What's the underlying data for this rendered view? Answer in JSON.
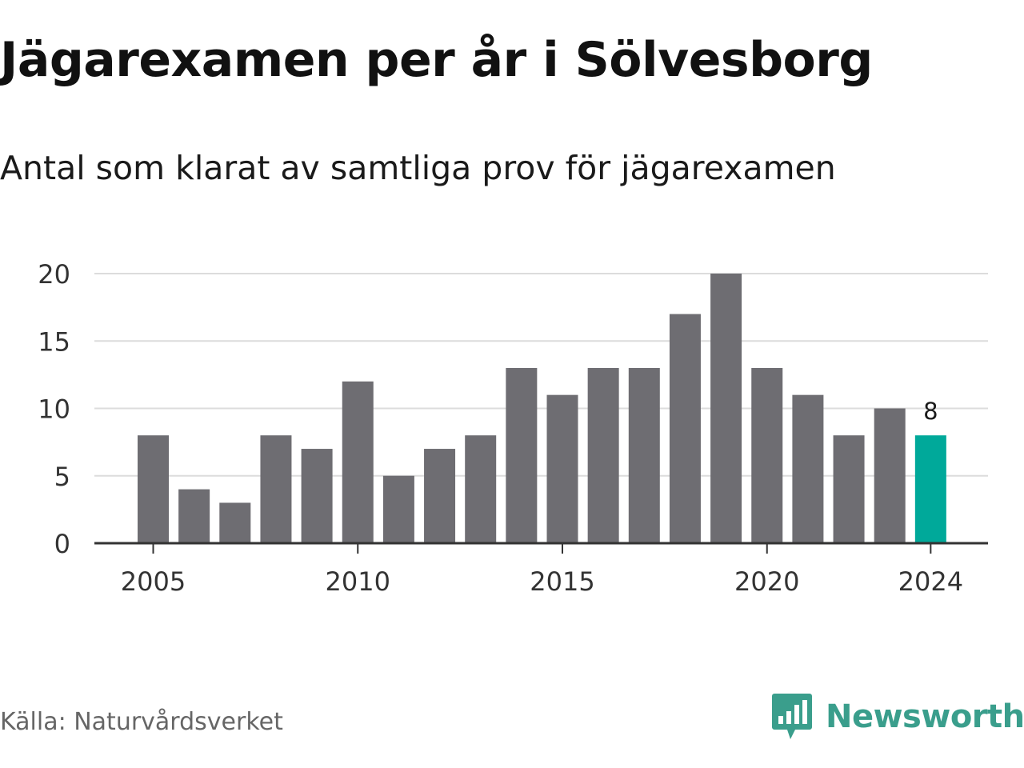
{
  "header": {
    "title": "Jägarexamen per år i Sölvesborg",
    "subtitle": "Antal som klarat av samtliga prov för jägarexamen"
  },
  "footer": {
    "source": "Källa: Naturvårdsverket",
    "brand": "Newsworthy",
    "brand_icon": "newsworthy-logo-icon",
    "brand_color": "#3a9e8c"
  },
  "chart_data": {
    "type": "bar",
    "categories": [
      "2005",
      "2006",
      "2007",
      "2008",
      "2009",
      "2010",
      "2011",
      "2012",
      "2013",
      "2014",
      "2015",
      "2016",
      "2017",
      "2018",
      "2019",
      "2020",
      "2021",
      "2022",
      "2023",
      "2024"
    ],
    "values": [
      8,
      4,
      3,
      8,
      7,
      12,
      5,
      7,
      8,
      13,
      11,
      13,
      13,
      17,
      20,
      13,
      11,
      8,
      10,
      8
    ],
    "x_tick_labels": [
      "2005",
      "2010",
      "2015",
      "2020",
      "2024"
    ],
    "y_ticks": [
      0,
      5,
      10,
      15,
      20
    ],
    "ylim": [
      0,
      20
    ],
    "grid": true,
    "bar_color": "#6e6d72",
    "highlight_color": "#00a99a",
    "highlight_category": "2024",
    "data_labels": [
      {
        "category": "2024",
        "text": "8"
      }
    ]
  }
}
